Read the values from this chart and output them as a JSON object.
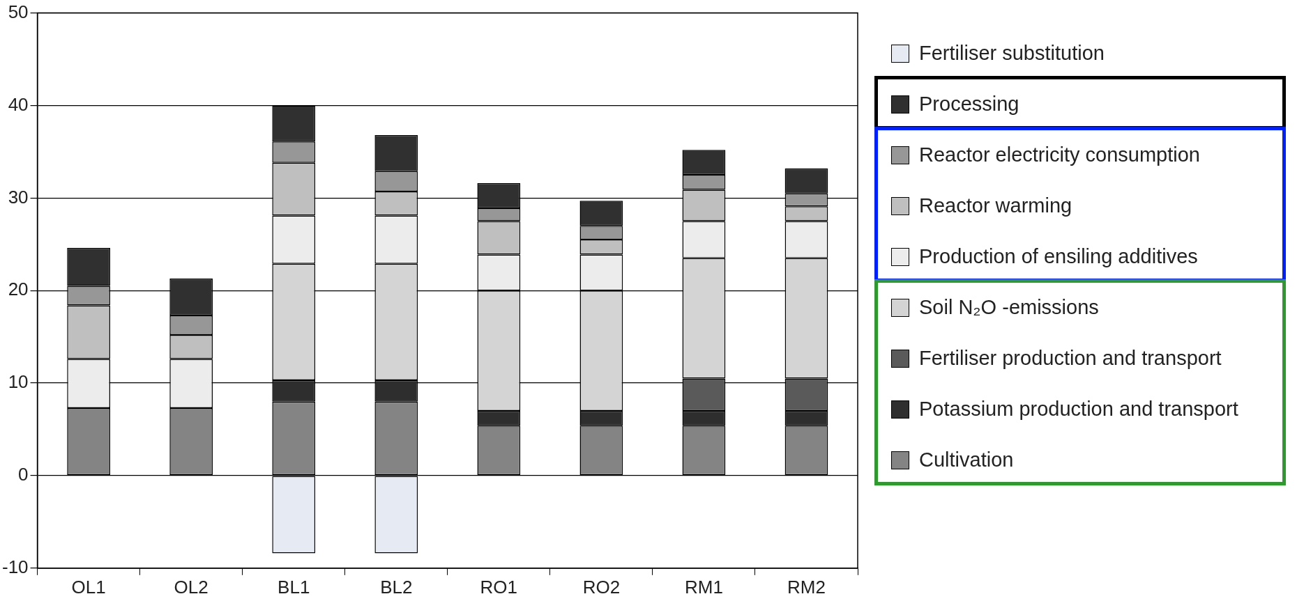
{
  "chart_data": {
    "type": "bar",
    "stacked": true,
    "categories": [
      "OL1",
      "OL2",
      "BL1",
      "BL2",
      "RO1",
      "RO2",
      "RM1",
      "RM2"
    ],
    "series": [
      {
        "name": "Cultivation",
        "color": "#848484",
        "values": [
          7.3,
          7.3,
          8.0,
          8.0,
          5.4,
          5.4,
          5.4,
          5.4
        ]
      },
      {
        "name": "Potassium production and  transport",
        "color": "#2e2e2e",
        "values": [
          null,
          null,
          2.3,
          2.3,
          1.6,
          1.6,
          1.6,
          1.6
        ]
      },
      {
        "name": "Fertiliser production and transport",
        "color": "#5a5a5a",
        "values": [
          null,
          null,
          null,
          null,
          null,
          null,
          3.5,
          3.5
        ]
      },
      {
        "name": "Soil  N₂O -emissions",
        "color": "#d4d4d4",
        "values": [
          null,
          null,
          12.6,
          12.6,
          13.0,
          13.0,
          13.0,
          13.0
        ]
      },
      {
        "name": "Production of ensiling additives",
        "color": "#ececec",
        "values": [
          5.3,
          5.3,
          5.2,
          5.2,
          3.9,
          3.9,
          4.0,
          4.0
        ]
      },
      {
        "name": "Reactor warming",
        "color": "#bfbfbf",
        "values": [
          5.8,
          2.6,
          5.7,
          2.6,
          3.6,
          1.6,
          3.4,
          1.6
        ]
      },
      {
        "name": "Reactor electricity consumption",
        "color": "#979797",
        "values": [
          2.1,
          2.1,
          2.3,
          2.2,
          1.4,
          1.5,
          1.6,
          1.4
        ]
      },
      {
        "name": "Processing",
        "color": "#303030",
        "values": [
          4.1,
          4.0,
          3.9,
          3.9,
          2.7,
          2.7,
          2.7,
          2.7
        ]
      },
      {
        "name": "Fertiliser substitution",
        "color": "#e6eaf2",
        "values": [
          null,
          null,
          -8.4,
          -8.4,
          null,
          null,
          null,
          null
        ]
      }
    ],
    "ylim": [
      -10,
      50
    ],
    "yticks": [
      -10,
      0,
      10,
      20,
      30,
      40,
      50
    ],
    "grid": "y",
    "legend": "right"
  }
}
